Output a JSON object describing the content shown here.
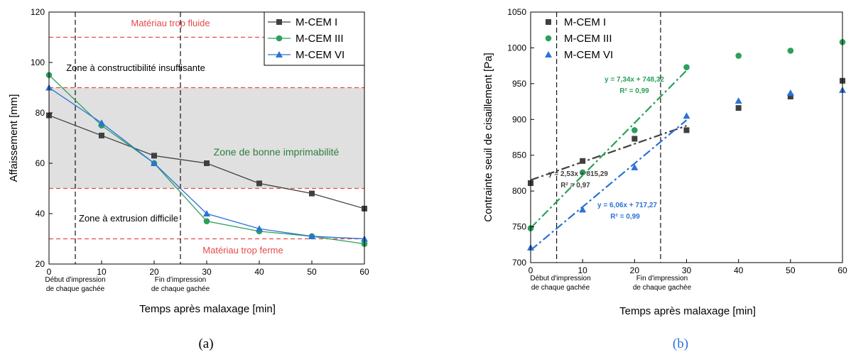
{
  "colors": {
    "mcem1": "#404040",
    "mcem3": "#2ca05a",
    "mcem6": "#2b72d6",
    "red": "#e8494a",
    "green_text": "#2e7d3e",
    "zone_fill": "#e0e0e0"
  },
  "chart_data": [
    {
      "type": "line",
      "panel_label": "(a)",
      "xlabel": "Temps après malaxage [min]",
      "ylabel": "Affaissement [mm]",
      "xlim": [
        0,
        60
      ],
      "ylim": [
        20,
        120
      ],
      "xticks": [
        0,
        10,
        20,
        30,
        40,
        50,
        60
      ],
      "yticks": [
        20,
        40,
        60,
        80,
        100,
        120
      ],
      "x": [
        0,
        10,
        20,
        30,
        40,
        50,
        60
      ],
      "series": [
        {
          "name": "M-CEM I",
          "marker": "square",
          "values": [
            79,
            71,
            63,
            60,
            52,
            48,
            42
          ]
        },
        {
          "name": "M-CEM III",
          "marker": "circle",
          "values": [
            95,
            75,
            60,
            37,
            33,
            31,
            28
          ]
        },
        {
          "name": "M-CEM VI",
          "marker": "triangle",
          "values": [
            90,
            76,
            60,
            40,
            34,
            31,
            30
          ]
        }
      ],
      "hlines": [
        110,
        90,
        50,
        30
      ],
      "shaded_band": [
        50,
        90
      ],
      "vlines": [
        5,
        25
      ],
      "annotations": {
        "top": "Matériau trop fluide",
        "zone_insufficient": "Zone à constructibilité insuffisante",
        "zone_good": "Zone de bonne imprimabilité",
        "zone_extrusion": "Zone à extrusion difficile",
        "bottom": "Matériau trop ferme",
        "start_print_1": "Début d'impression",
        "start_print_2": "de chaque gachée",
        "end_print_1": "Fin d'impression",
        "end_print_2": "de chaque gachée"
      },
      "legend_position": "top-right",
      "grid": false
    },
    {
      "type": "scatter",
      "panel_label": "(b)",
      "xlabel": "Temps après malaxage [min]",
      "ylabel": "Contrainte seuil de cisaillement [Pa]",
      "xlim": [
        0,
        60
      ],
      "ylim": [
        700,
        1050
      ],
      "xticks": [
        0,
        10,
        20,
        30,
        40,
        50,
        60
      ],
      "yticks": [
        700,
        750,
        800,
        850,
        900,
        950,
        1000,
        1050
      ],
      "x": [
        0,
        10,
        20,
        30,
        40,
        50,
        60
      ],
      "series": [
        {
          "name": "M-CEM I",
          "marker": "square",
          "values": [
            811,
            842,
            873,
            885,
            916,
            932,
            954
          ]
        },
        {
          "name": "M-CEM III",
          "marker": "circle",
          "values": [
            748,
            826,
            885,
            973,
            989,
            996,
            1008
          ]
        },
        {
          "name": "M-CEM VI",
          "marker": "triangle",
          "values": [
            721,
            774,
            833,
            905,
            926,
            937,
            941
          ]
        }
      ],
      "fits": [
        {
          "series": "M-CEM I",
          "slope": 2.53,
          "intercept": 815.29,
          "x_range": [
            0,
            30
          ],
          "equation": "y = 2,53x + 815,29",
          "r2_label": "R² = 0,97"
        },
        {
          "series": "M-CEM III",
          "slope": 7.34,
          "intercept": 748.32,
          "x_range": [
            0,
            30
          ],
          "equation": "y = 7,34x + 748,32",
          "r2_label": "R² = 0,99"
        },
        {
          "series": "M-CEM VI",
          "slope": 6.06,
          "intercept": 717.27,
          "x_range": [
            0,
            30
          ],
          "equation": "y = 6,06x + 717,27",
          "r2_label": "R² = 0,99"
        }
      ],
      "vlines": [
        5,
        25
      ],
      "annotations": {
        "start_print_1": "Début d'impression",
        "start_print_2": "de chaque gachée",
        "end_print_1": "Fin d'impression",
        "end_print_2": "de chaque gachée"
      },
      "legend_position": "top-left",
      "grid": false
    }
  ]
}
